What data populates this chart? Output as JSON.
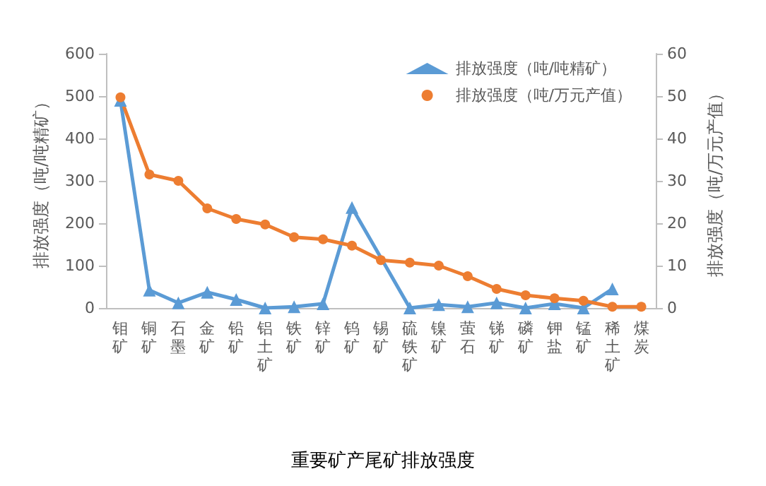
{
  "chart_data": {
    "type": "line",
    "title": "重要矿产尾矿排放强度",
    "ylabel": "排放强度（吨/吨精矿）",
    "y2label": "排放强度（吨/万元产值）",
    "categories": [
      "钼矿",
      "铜矿",
      "石墨",
      "金矿",
      "铅矿",
      "铝土矿",
      "铁矿",
      "锌矿",
      "钨矿",
      "锡矿",
      "硫铁矿",
      "镍矿",
      "萤石",
      "锑矿",
      "磷矿",
      "钾盐",
      "锰矿",
      "稀土矿",
      "煤炭"
    ],
    "series": [
      {
        "name": "排放强度（吨/吨精矿）",
        "color": "#5b9bd5",
        "marker": "triangle",
        "values": [
          490,
          42,
          12,
          37,
          20,
          0,
          3,
          10,
          237,
          null,
          0,
          8,
          3,
          12,
          0,
          10,
          0,
          45,
          null
        ]
      },
      {
        "name": "排放强度（吨/万元产值）",
        "color": "#ed7d31",
        "marker": "circle",
        "axis": "y2",
        "values": [
          49.7,
          31.5,
          30,
          23.5,
          21,
          19.7,
          16.7,
          16.2,
          14.7,
          11.3,
          10.7,
          10,
          7.5,
          4.5,
          3,
          2.3,
          1.7,
          0.3,
          0.3
        ]
      }
    ],
    "ylim": [
      0,
      600
    ],
    "yticks": [
      0,
      100,
      200,
      300,
      400,
      500,
      600
    ],
    "y2lim": [
      0,
      60
    ],
    "y2ticks": [
      0,
      10,
      20,
      30,
      40,
      50,
      60
    ],
    "grid": false,
    "legend": "top right",
    "line_style": "solid"
  }
}
